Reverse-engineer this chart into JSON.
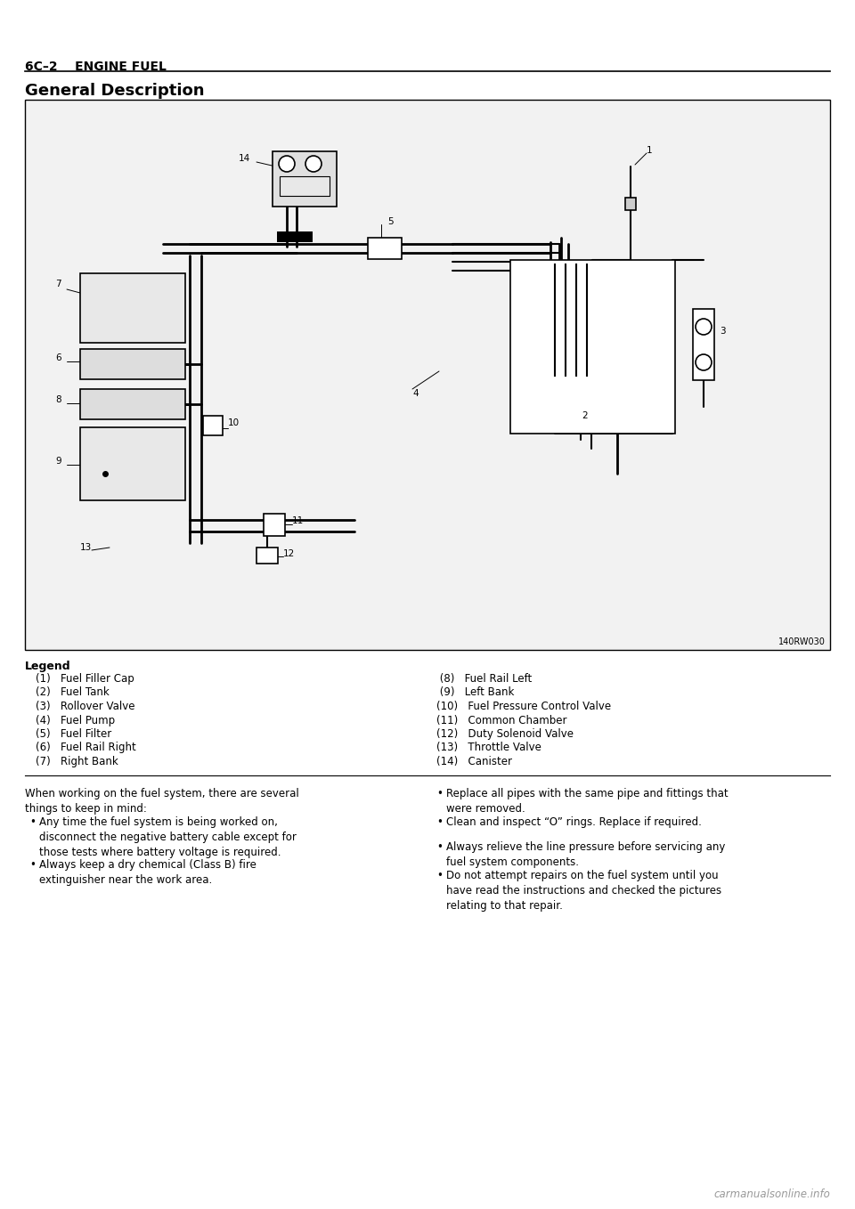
{
  "header_left": "6C–2    ENGINE FUEL",
  "section_title": "General Description",
  "diagram_ref": "140RW030",
  "legend_title": "Legend",
  "legend_left": [
    "(1)   Fuel Filler Cap",
    "(2)   Fuel Tank",
    "(3)   Rollover Valve",
    "(4)   Fuel Pump",
    "(5)   Fuel Filter",
    "(6)   Fuel Rail Right",
    "(7)   Right Bank"
  ],
  "legend_right": [
    " (8)   Fuel Rail Left",
    " (9)   Left Bank",
    "(10)   Fuel Pressure Control Valve",
    "(11)   Common Chamber",
    "(12)   Duty Solenoid Valve",
    "(13)   Throttle Valve",
    "(14)   Canister"
  ],
  "body_left_title": "When working on the fuel system, there are several\nthings to keep in mind:",
  "body_left_bullets": [
    "Any time the fuel system is being worked on,\ndisconnect the negative battery cable except for\nthose tests where battery voltage is required.",
    "Always keep a dry chemical (Class B) fire\nextinguisher near the work area."
  ],
  "body_right_bullets": [
    "Replace all pipes with the same pipe and fittings that\nwere removed.",
    "Clean and inspect “O” rings. Replace if required.",
    "Always relieve the line pressure before servicing any\nfuel system components.",
    "Do not attempt repairs on the fuel system until you\nhave read the instructions and checked the pictures\nrelating to that repair."
  ],
  "bg_color": "#ffffff",
  "text_color": "#000000",
  "diagram_bg": "#f0f0f0"
}
